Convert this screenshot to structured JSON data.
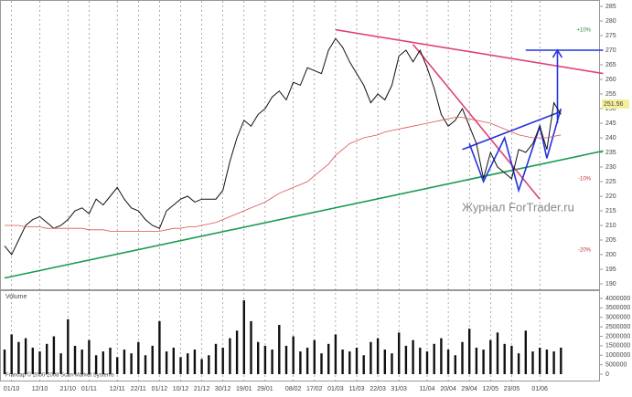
{
  "chart_data": [
    {
      "type": "line",
      "series": [
        {
          "color": "#111111",
          "values": [
            203,
            200,
            205,
            210,
            212,
            213,
            211,
            209,
            210,
            212,
            215,
            216,
            214,
            219,
            217,
            220,
            223,
            219,
            216,
            215,
            212,
            210,
            209,
            215,
            217,
            219,
            220,
            218,
            219,
            219,
            219,
            222,
            232,
            240,
            246,
            244,
            248,
            250,
            254,
            256,
            253,
            259,
            258,
            264,
            263,
            262,
            270,
            274,
            271,
            266,
            262,
            258,
            252,
            255,
            253,
            258,
            268,
            270,
            266,
            270,
            264,
            257,
            248,
            244,
            246,
            250,
            244,
            238,
            226,
            235,
            230,
            228,
            226,
            236,
            235,
            238,
            244,
            236,
            252,
            248
          ]
        },
        {
          "color": "#d9534f",
          "values": [
            210,
            210,
            210,
            209.5,
            209.5,
            209.5,
            209,
            209,
            209,
            209,
            209,
            209,
            208.5,
            208.5,
            208.5,
            208,
            208,
            208,
            208,
            208,
            208,
            208,
            208,
            208.5,
            209,
            209,
            209.5,
            209.5,
            210,
            210.5,
            211,
            212,
            213,
            214,
            215,
            216,
            217,
            218,
            219.5,
            221,
            222,
            223,
            224,
            225,
            227,
            229,
            231,
            234,
            236,
            238,
            239,
            240,
            240.5,
            241,
            242,
            242.5,
            243,
            243.5,
            244,
            244.5,
            245,
            245.5,
            246,
            246.5,
            247,
            247,
            246.5,
            246,
            245.5,
            245,
            244,
            243,
            242,
            241,
            240.5,
            240,
            240,
            240,
            240.5,
            241
          ]
        }
      ],
      "ylim": [
        190,
        285
      ],
      "yticks": [
        190,
        195,
        200,
        205,
        210,
        215,
        220,
        225,
        230,
        235,
        240,
        245,
        250,
        255,
        260,
        265,
        270,
        275,
        280,
        285
      ],
      "current_price": 251.56,
      "percent_labels": [
        "+10%",
        "-10%",
        "-20%"
      ],
      "watermark": "Журнал ForTrader.ru",
      "trendlines": [
        {
          "color": "#1a9a50",
          "points": [
            [
              0,
              192
            ],
            [
              85,
              235.5
            ]
          ]
        },
        {
          "color": "#e0407a",
          "points": [
            [
              47,
              277
            ],
            [
              85,
              262
            ]
          ]
        },
        {
          "color": "#e0407a",
          "points": [
            [
              58,
              272
            ],
            [
              76,
              219
            ]
          ]
        },
        {
          "color": "#2233dd",
          "points": [
            [
              66,
              238
            ],
            [
              68,
              225
            ],
            [
              71,
              240
            ],
            [
              73,
              222
            ],
            [
              76,
              244
            ],
            [
              77,
              233
            ],
            [
              79,
              250
            ]
          ]
        },
        {
          "color": "#2233dd",
          "points": [
            [
              65,
              236
            ],
            [
              79,
              249
            ]
          ]
        },
        {
          "color": "#2233dd",
          "points": [
            [
              74,
              270
            ],
            [
              85,
              270
            ]
          ]
        },
        {
          "color": "#2233dd",
          "points": [
            [
              78.5,
              245
            ],
            [
              78.5,
              270
            ]
          ]
        }
      ]
    },
    {
      "type": "bar",
      "title": "Volume",
      "footer": "Francap © 2000-2008 Scan-Market Systems",
      "color": "#111111",
      "categories": [
        null,
        "01/10",
        null,
        null,
        null,
        "12/10",
        null,
        null,
        null,
        "21/10",
        null,
        null,
        "01/11",
        null,
        null,
        null,
        "12/11",
        null,
        null,
        "22/11",
        null,
        null,
        "01/12",
        null,
        null,
        "10/12",
        null,
        null,
        "21/12",
        null,
        null,
        "30/12",
        null,
        null,
        "19/01",
        null,
        null,
        "29/01",
        null,
        null,
        null,
        "08/02",
        null,
        null,
        "17/02",
        null,
        null,
        "01/03",
        null,
        null,
        "11/03",
        null,
        null,
        "22/03",
        null,
        null,
        "31/03",
        null,
        null,
        null,
        "11/04",
        null,
        null,
        "20/04",
        null,
        null,
        "29/04",
        null,
        null,
        "12/05",
        null,
        null,
        "23/05",
        null,
        null,
        null,
        "01/06",
        null,
        null,
        null
      ],
      "values": [
        1300000,
        2100000,
        1700000,
        1900000,
        1400000,
        1200000,
        1600000,
        2000000,
        1100000,
        2900000,
        1500000,
        1300000,
        1800000,
        1000000,
        1200000,
        1400000,
        900000,
        1300000,
        1100000,
        1700000,
        1000000,
        1500000,
        2800000,
        1200000,
        1400000,
        900000,
        1100000,
        1300000,
        800000,
        1000000,
        1600000,
        1400000,
        1900000,
        2300000,
        3900000,
        2800000,
        1700000,
        1500000,
        1300000,
        2600000,
        1500000,
        2000000,
        1200000,
        1400000,
        1800000,
        1100000,
        1600000,
        2100000,
        1300000,
        1200000,
        1400000,
        1000000,
        1700000,
        1900000,
        1300000,
        1100000,
        2200000,
        1500000,
        1800000,
        1400000,
        1200000,
        1600000,
        1900000,
        1300000,
        1000000,
        1700000,
        2400000,
        1400000,
        1300000,
        1800000,
        2200000,
        1600000,
        1500000,
        1100000,
        2300000,
        1200000,
        1400000,
        1300000,
        1200000,
        1400000
      ],
      "ylim": [
        0,
        4000000
      ],
      "yticks": [
        0,
        500000,
        1000000,
        1500000,
        2000000,
        2500000,
        3000000,
        3500000,
        4000000
      ]
    }
  ]
}
